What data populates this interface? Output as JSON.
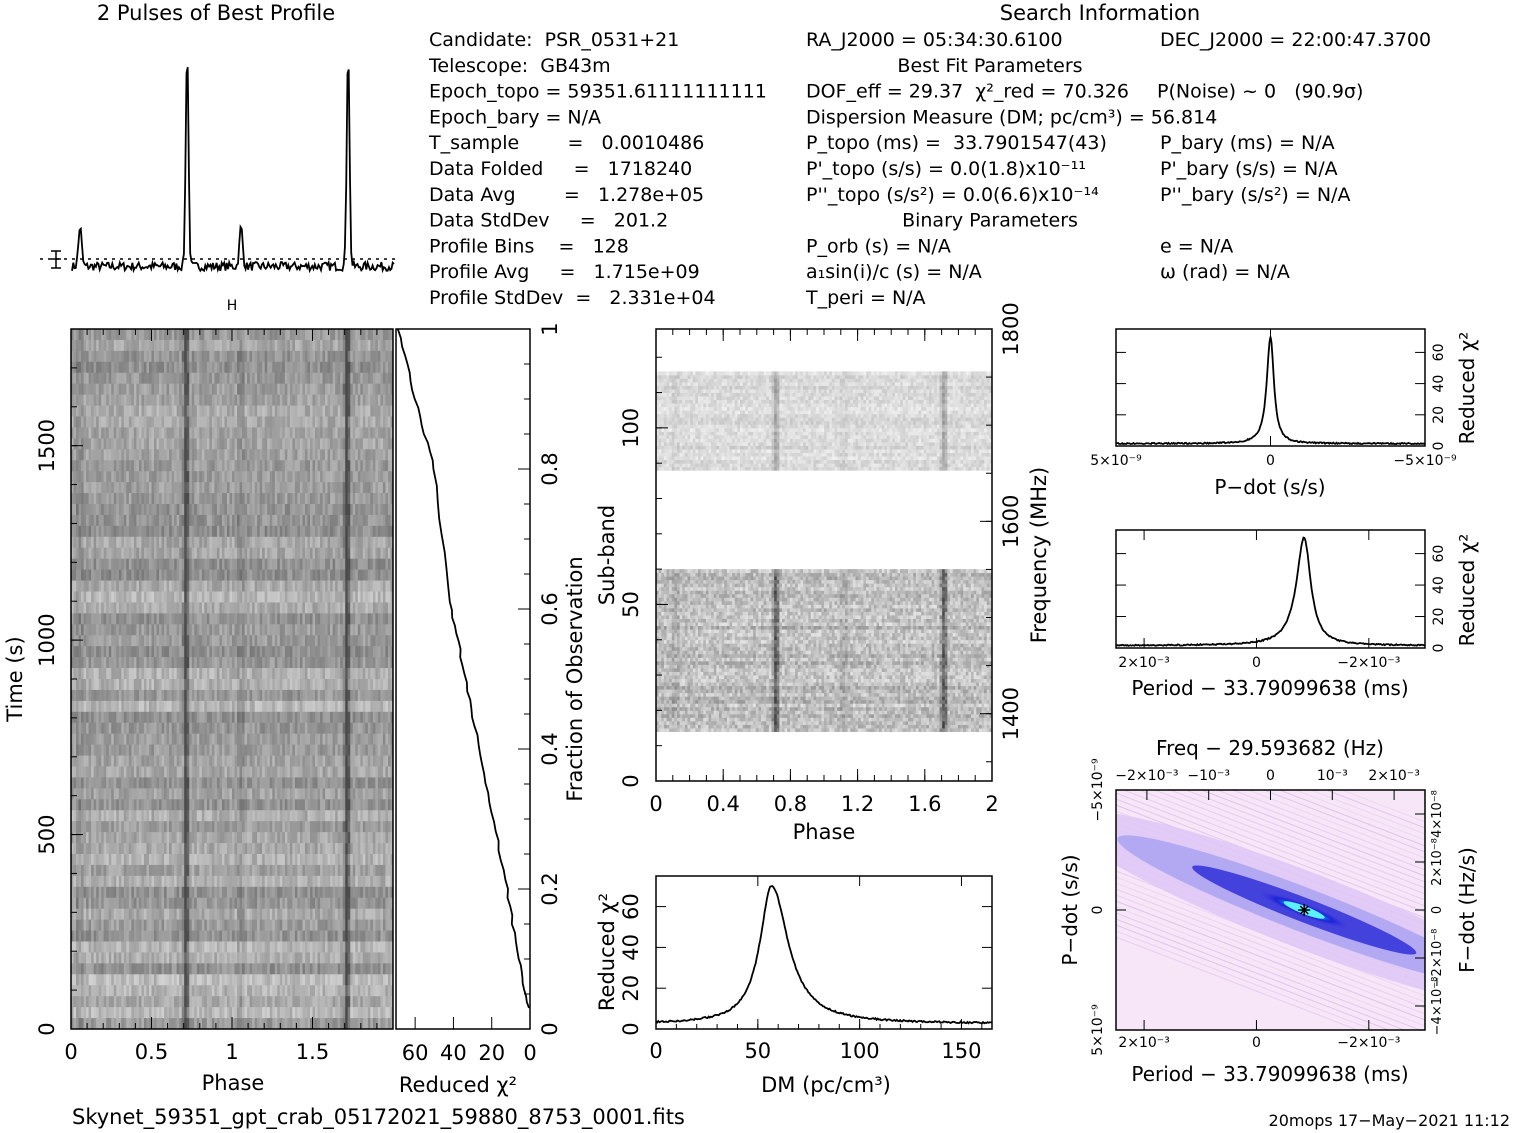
{
  "title_profile": "2 Pulses of Best Profile",
  "title_search": "Search Information",
  "footer_filename": "Skynet_59351_gpt_crab_05172021_59880_8753_0001.fits",
  "footer_stamp": "20mops 17−May−2021 11:12",
  "info_left": [
    "Candidate:  PSR_0531+21",
    "Telescope:  GB43m",
    "Epoch_topo = 59351.61111111111",
    "Epoch_bary = N/A",
    "T_sample        =   0.0010486",
    "Data Folded     =   1718240",
    "Data Avg        =   1.278e+05",
    "Data StdDev     =   201.2",
    "Profile Bins    =   128",
    "Profile Avg     =   1.715e+09",
    "Profile StdDev  =   2.331e+04"
  ],
  "info_mid": [
    "RA_J2000 = 05:34:30.6100",
    "Best Fit Parameters",
    "DOF_eff = 29.37  χ²_red = 70.326",
    "Dispersion Measure (DM; pc/cm³) = 56.814",
    "P_topo (ms) =  33.7901547(43)",
    "P'_topo (s/s) = 0.0(1.8)x10⁻¹¹",
    "P''_topo (s/s²) = 0.0(6.6)x10⁻¹⁴",
    "Binary Parameters",
    "P_orb (s) = N/A",
    "a₁sin(i)/c (s) = N/A",
    "T_peri = N/A"
  ],
  "info_right": [
    "DEC_J2000 = 22:00:47.3700",
    "P(Noise) ~ 0   (90.9σ)",
    "P_bary (ms) = N/A",
    "P'_bary (s/s) = N/A",
    "P''_bary (s/s²) = N/A",
    "e = N/A",
    "ω (rad) = N/A"
  ],
  "chart_data": [
    {
      "id": "profile",
      "type": "line",
      "title": "2 Pulses of Best Profile",
      "xlim": [
        0,
        2
      ],
      "pulse_phases": [
        0.05,
        0.715,
        1.05,
        1.715
      ],
      "pulse_heights": [
        0.18,
        1.0,
        0.18,
        1.0
      ]
    },
    {
      "id": "time_phase",
      "type": "heatmap",
      "xlabel": "Phase",
      "ylabel": "Time (s)",
      "xlim": [
        0,
        2
      ],
      "ylim": [
        0,
        1800
      ],
      "xticks": [
        "0",
        "0.5",
        "1",
        "1.5"
      ],
      "xtick_values": [
        0,
        0.5,
        1,
        1.5
      ],
      "yticks": [
        "0",
        "500",
        "1000",
        "1500"
      ],
      "ytick_values": [
        0,
        500,
        1000,
        1500
      ],
      "pulse_phases": [
        0.715,
        1.715
      ]
    },
    {
      "id": "chi2_time",
      "type": "line",
      "xlabel": "Reduced χ²",
      "ylabel_right": "Fraction of Observation",
      "xlim": [
        70,
        0
      ],
      "ylim": [
        0,
        1
      ],
      "xticks": [
        "60",
        "40",
        "20",
        "0"
      ],
      "xtick_values": [
        60,
        40,
        20,
        0
      ],
      "yticks": [
        "0",
        "0.2",
        "0.4",
        "0.6",
        "0.8",
        "1"
      ],
      "ytick_values": [
        0,
        0.2,
        0.4,
        0.6,
        0.8,
        1
      ],
      "x": [
        68.5,
        60,
        50,
        42,
        35,
        28,
        20,
        12,
        6,
        0.5
      ],
      "y": [
        1.0,
        0.9,
        0.8,
        0.61,
        0.52,
        0.42,
        0.31,
        0.2,
        0.1,
        0.03
      ]
    },
    {
      "id": "subband_phase",
      "type": "heatmap",
      "xlabel": "Phase",
      "ylabel": "Sub-band",
      "ylabel_right": "Frequency (MHz)",
      "xlim": [
        0,
        2
      ],
      "ylim": [
        0,
        128
      ],
      "xticks": [
        "0",
        "0.4",
        "0.8",
        "1.2",
        "1.6",
        "2"
      ],
      "xtick_values": [
        0,
        0.4,
        0.8,
        1.2,
        1.6,
        2
      ],
      "yticks": [
        "0",
        "50",
        "100"
      ],
      "ytick_values": [
        0,
        50,
        100
      ],
      "freq_ticks": [
        "1400",
        "1600",
        "1800"
      ],
      "freq_tick_values": [
        1400,
        1600,
        1800
      ],
      "freq_range": [
        1330,
        1800
      ],
      "bands": [
        [
          14,
          60
        ],
        [
          88,
          116
        ]
      ],
      "pulse_phases": [
        0.715,
        1.715
      ]
    },
    {
      "id": "dm_curve",
      "type": "line",
      "xlabel": "DM (pc/cm³)",
      "ylabel": "Reduced χ²",
      "xlim": [
        0,
        165
      ],
      "ylim": [
        0,
        75
      ],
      "xticks": [
        "0",
        "50",
        "100",
        "150"
      ],
      "xtick_values": [
        0,
        50,
        100,
        150
      ],
      "yticks": [
        "0",
        "20",
        "40",
        "60"
      ],
      "ytick_values": [
        0,
        20,
        40,
        60
      ],
      "peak_x": 56.814,
      "peak_y": 70.3
    },
    {
      "id": "pdot_curve",
      "type": "line",
      "xlabel": "P−dot (s/s)",
      "ylabel_right": "Reduced χ²",
      "xlim": [
        5e-09,
        -5e-09
      ],
      "ylim": [
        0,
        75
      ],
      "xticks": [
        "5×10⁻⁹",
        "0",
        "−5×10⁻⁹"
      ],
      "xtick_values": [
        5e-09,
        0,
        -5e-09
      ],
      "yticks": [
        "0",
        "20",
        "40",
        "60"
      ],
      "ytick_values": [
        0,
        20,
        40,
        60
      ],
      "peak_x": 0,
      "peak_y": 70.3
    },
    {
      "id": "period_curve",
      "type": "line",
      "xlabel": "Period − 33.79099638 (ms)",
      "ylabel_right": "Reduced χ²",
      "xlim": [
        0.0025,
        -0.003
      ],
      "ylim": [
        0,
        75
      ],
      "xticks": [
        "2×10⁻³",
        "0",
        "−2×10⁻³"
      ],
      "xtick_values": [
        0.002,
        0,
        -0.002
      ],
      "yticks": [
        "0",
        "20",
        "40",
        "60"
      ],
      "ytick_values": [
        0,
        20,
        40,
        60
      ],
      "peak_x": -0.00085,
      "peak_y": 70.3
    },
    {
      "id": "p_pdot_plane",
      "type": "heatmap",
      "title": "Freq − 29.593682 (Hz)",
      "xlabel": "Period − 33.79099638 (ms)",
      "ylabel": "P−dot (s/s)",
      "ylabel_right": "F−dot (Hz/s)",
      "xlim": [
        0.0025,
        -0.003
      ],
      "ylim": [
        5e-09,
        -5e-09
      ],
      "xticks": [
        "2×10⁻³",
        "0",
        "−2×10⁻³"
      ],
      "xtick_values": [
        0.002,
        0,
        -0.002
      ],
      "yticks": [
        "5×10⁻⁹",
        "0",
        "−5×10⁻⁹"
      ],
      "ytick_values": [
        5e-09,
        0,
        -5e-09
      ],
      "top_ticks": [
        "−2×10⁻³",
        "−10⁻³",
        "0",
        "10⁻³",
        "2×10⁻³"
      ],
      "top_tick_values": [
        -0.002,
        -0.001,
        0,
        0.001,
        0.002
      ],
      "right_ticks": [
        "−4×10⁻⁸",
        "−2×10⁻⁸",
        "0",
        "2×10⁻⁸",
        "4×10⁻⁸"
      ],
      "right_tick_values": [
        -4e-08,
        -2e-08,
        0,
        2e-08,
        4e-08
      ],
      "best_period": -0.00085,
      "best_pdot": 0
    }
  ]
}
